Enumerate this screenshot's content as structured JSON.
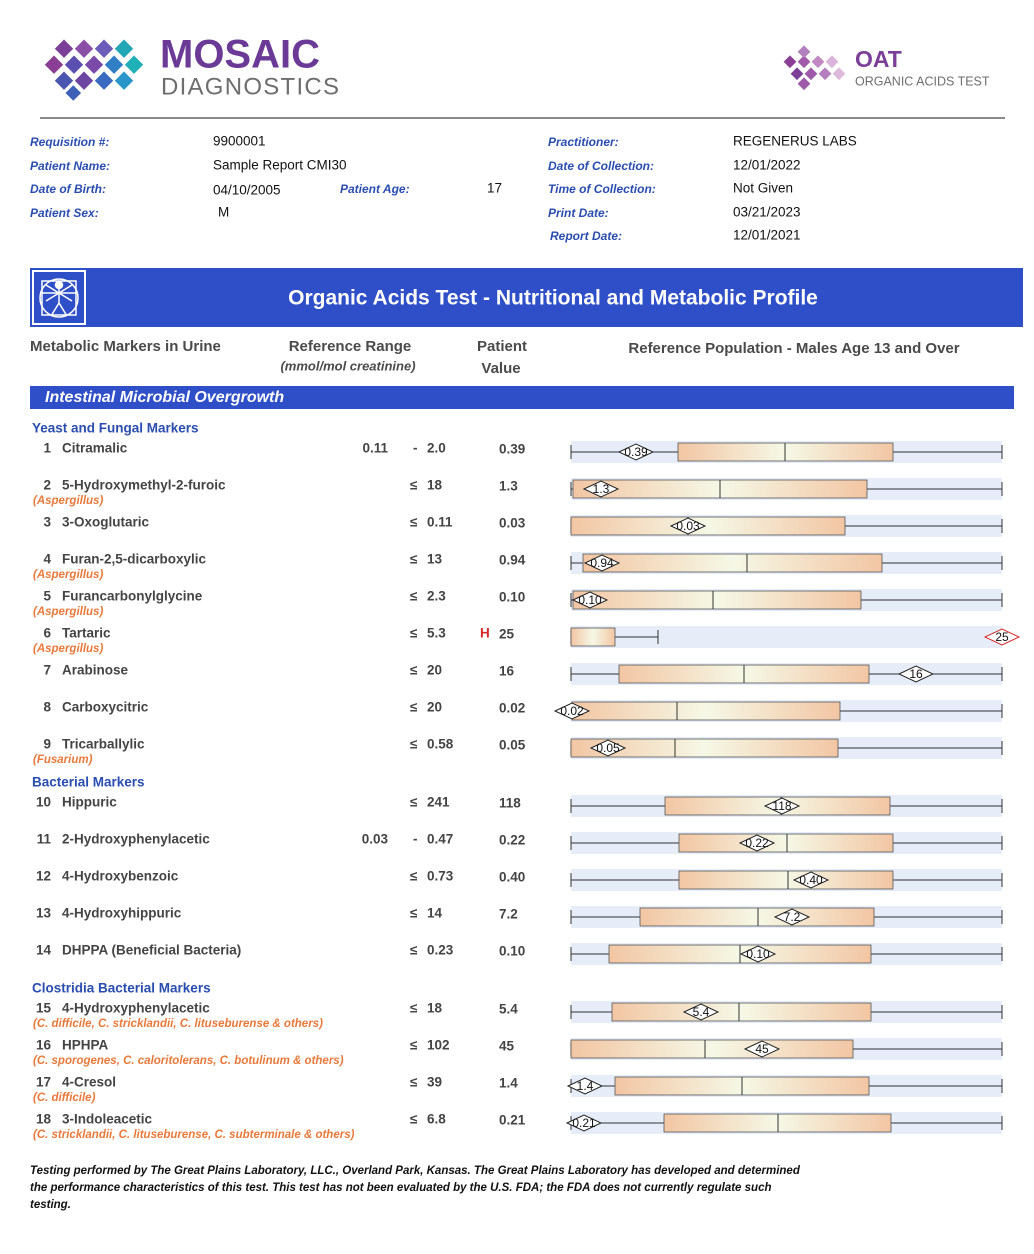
{
  "header": {
    "brand": "MOSAIC",
    "brand_sub": "DIAGNOSTICS",
    "product": "OAT",
    "product_sub": "ORGANIC ACIDS TEST"
  },
  "patient_info": {
    "requisition": {
      "label": "Requisition #:",
      "value": "9900001"
    },
    "name": {
      "label": "Patient Name:",
      "value": "Sample Report CMI30"
    },
    "dob": {
      "label": "Date of Birth:",
      "value": "04/10/2005"
    },
    "age": {
      "label": "Patient Age:",
      "value": "17"
    },
    "sex": {
      "label": "Patient Sex:",
      "value": "M"
    },
    "practitioner": {
      "label": "Practitioner:",
      "value": "REGENERUS LABS"
    },
    "collection_date": {
      "label": "Date of Collection:",
      "value": "12/01/2022"
    },
    "collection_time": {
      "label": "Time of Collection:",
      "value": "Not Given"
    },
    "print_date": {
      "label": "Print Date:",
      "value": "03/21/2023"
    },
    "report_date": {
      "label": "Report Date:",
      "value": "12/01/2021"
    }
  },
  "report_title": "Organic Acids Test - Nutritional and Metabolic Profile",
  "columns": {
    "markers": "Metabolic Markers in Urine",
    "range": "Reference Range",
    "range_unit": "(mmol/mol creatinine)",
    "patient": "Patient",
    "value": "Value",
    "population": "Reference Population - Males Age 13 and Over"
  },
  "section": "Intestinal Microbial Overgrowth",
  "groups": [
    {
      "title": "Yeast and Fungal Markers",
      "rows": [
        {
          "num": "1",
          "name": "Citramalic",
          "low": "0.11",
          "sign": "-",
          "high": "2.0",
          "value": "0.39"
        },
        {
          "num": "2",
          "name": "5-Hydroxymethyl-2-furoic",
          "note": "(Aspergillus)",
          "sign": "≤",
          "high": "18",
          "value": "1.3"
        },
        {
          "num": "3",
          "name": "3-Oxoglutaric",
          "sign": "≤",
          "high": "0.11",
          "value": "0.03"
        },
        {
          "num": "4",
          "name": "Furan-2,5-dicarboxylic",
          "note": "(Aspergillus)",
          "sign": "≤",
          "high": "13",
          "value": "0.94"
        },
        {
          "num": "5",
          "name": "Furancarbonylglycine",
          "note": "(Aspergillus)",
          "sign": "≤",
          "high": "2.3",
          "value": "0.10"
        },
        {
          "num": "6",
          "name": "Tartaric",
          "note": "(Aspergillus)",
          "sign": "≤",
          "high": "5.3",
          "flag": "H",
          "value": "25"
        },
        {
          "num": "7",
          "name": "Arabinose",
          "sign": "≤",
          "high": "20",
          "value": "16"
        },
        {
          "num": "8",
          "name": "Carboxycitric",
          "sign": "≤",
          "high": "20",
          "value": "0.02"
        },
        {
          "num": "9",
          "name": "Tricarballylic",
          "note": "(Fusarium)",
          "sign": "≤",
          "high": "0.58",
          "value": "0.05"
        }
      ]
    },
    {
      "title": "Bacterial Markers",
      "rows": [
        {
          "num": "10",
          "name": "Hippuric",
          "sign": "≤",
          "high": "241",
          "value": "118"
        },
        {
          "num": "11",
          "name": "2-Hydroxyphenylacetic",
          "low": "0.03",
          "sign": "-",
          "high": "0.47",
          "value": "0.22"
        },
        {
          "num": "12",
          "name": "4-Hydroxybenzoic",
          "sign": "≤",
          "high": "0.73",
          "value": "0.40"
        },
        {
          "num": "13",
          "name": "4-Hydroxyhippuric",
          "sign": "≤",
          "high": "14",
          "value": "7.2"
        },
        {
          "num": "14",
          "name": "DHPPA (Beneficial Bacteria)",
          "sign": "≤",
          "high": "0.23",
          "value": "0.10"
        }
      ]
    },
    {
      "title": "Clostridia Bacterial Markers",
      "rows": [
        {
          "num": "15",
          "name": "4-Hydroxyphenylacetic",
          "note": "(C. difficile, C. stricklandii, C. lituseburense & others)",
          "sign": "≤",
          "high": "18",
          "value": "5.4"
        },
        {
          "num": "16",
          "name": "HPHPA",
          "note": "(C. sporogenes, C. caloritolerans, C. botulinum & others)",
          "sign": "≤",
          "high": "102",
          "value": "45"
        },
        {
          "num": "17",
          "name": "4-Cresol",
          "note": "(C. difficile)",
          "sign": "≤",
          "high": "39",
          "value": "1.4"
        },
        {
          "num": "18",
          "name": "3-Indoleacetic",
          "note": "(C. stricklandii, C. lituseburense, C. subterminale & others)",
          "sign": "≤",
          "high": "6.8",
          "value": "0.21"
        }
      ]
    }
  ],
  "footer": [
    "Testing performed by The Great Plains Laboratory, LLC., Overland Park, Kansas. The Great Plains Laboratory has developed and determined",
    "the performance characteristics of this test. This test has not been evaluated by the U.S. FDA; the FDA does not currently regulate such",
    "testing."
  ]
}
